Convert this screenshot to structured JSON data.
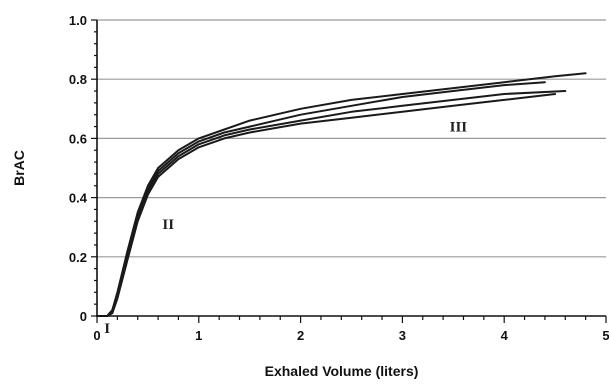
{
  "chart_data": {
    "type": "line",
    "title": "",
    "xlabel": "Exhaled Volume (liters)",
    "ylabel": "BrAC",
    "xlim": [
      0,
      5
    ],
    "ylim": [
      0,
      1.0
    ],
    "x_ticks": [
      "0",
      "1",
      "2",
      "3",
      "4",
      "5"
    ],
    "y_ticks": [
      "0",
      "0.2",
      "0.4",
      "0.6",
      "0.8",
      "1.0"
    ],
    "grid": "horizontal",
    "legend": "none",
    "annotations": [
      {
        "text": "I",
        "x": 0.1,
        "y": -0.04
      },
      {
        "text": "II",
        "x": 0.7,
        "y": 0.31
      },
      {
        "text": "III",
        "x": 3.55,
        "y": 0.64
      }
    ],
    "series": [
      {
        "x": [
          0,
          0.1,
          0.15,
          0.2,
          0.3,
          0.4,
          0.5,
          0.6,
          0.8,
          1.0,
          1.25,
          1.5,
          2.0,
          2.5,
          3.0,
          3.5,
          4.0,
          4.5,
          4.8
        ],
        "y": [
          0,
          0.0,
          0.02,
          0.08,
          0.22,
          0.35,
          0.44,
          0.5,
          0.56,
          0.6,
          0.63,
          0.66,
          0.7,
          0.73,
          0.75,
          0.77,
          0.79,
          0.81,
          0.82
        ]
      },
      {
        "x": [
          0,
          0.1,
          0.15,
          0.2,
          0.3,
          0.4,
          0.5,
          0.6,
          0.8,
          1.0,
          1.25,
          1.5,
          2.0,
          2.5,
          3.0,
          3.5,
          4.0,
          4.4
        ],
        "y": [
          0,
          0.0,
          0.02,
          0.07,
          0.21,
          0.34,
          0.43,
          0.49,
          0.55,
          0.59,
          0.62,
          0.64,
          0.68,
          0.71,
          0.74,
          0.76,
          0.78,
          0.79
        ]
      },
      {
        "x": [
          0,
          0.1,
          0.15,
          0.2,
          0.3,
          0.4,
          0.5,
          0.6,
          0.8,
          1.0,
          1.25,
          1.5,
          2.0,
          2.5,
          3.0,
          3.5,
          4.0,
          4.6
        ],
        "y": [
          0,
          0.0,
          0.01,
          0.06,
          0.2,
          0.33,
          0.42,
          0.48,
          0.54,
          0.58,
          0.61,
          0.63,
          0.66,
          0.69,
          0.71,
          0.73,
          0.75,
          0.76
        ]
      },
      {
        "x": [
          0,
          0.1,
          0.15,
          0.2,
          0.3,
          0.4,
          0.5,
          0.6,
          0.8,
          1.0,
          1.25,
          1.5,
          2.0,
          2.5,
          3.0,
          3.5,
          4.0,
          4.5
        ],
        "y": [
          0,
          0.0,
          0.01,
          0.06,
          0.19,
          0.32,
          0.41,
          0.47,
          0.53,
          0.57,
          0.6,
          0.62,
          0.65,
          0.67,
          0.69,
          0.71,
          0.73,
          0.75
        ]
      }
    ],
    "colors": {
      "line": "#1a1a1a",
      "grid": "#9a9a9a",
      "axis": "#111111"
    }
  }
}
